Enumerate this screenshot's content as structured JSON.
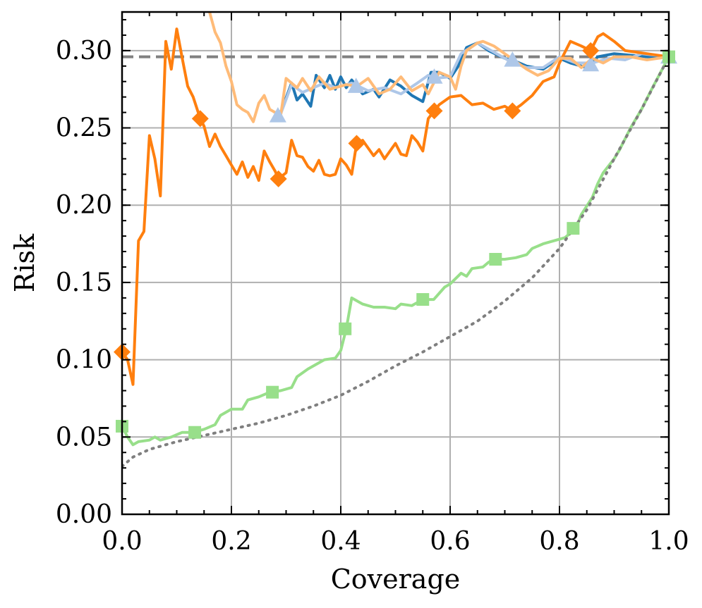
{
  "chart_data": {
    "type": "line",
    "xlabel": "Coverage",
    "ylabel": "Risk",
    "xlim": [
      0.0,
      1.0
    ],
    "ylim": [
      0.0,
      0.325
    ],
    "xticks": [
      "0.0",
      "0.2",
      "0.4",
      "0.6",
      "0.8",
      "1.0"
    ],
    "yticks": [
      "0.00",
      "0.05",
      "0.10",
      "0.15",
      "0.20",
      "0.25",
      "0.30"
    ],
    "grid": true,
    "reference_lines": [
      {
        "orientation": "horizontal",
        "y": 0.296,
        "style": "dashed",
        "color": "#808080"
      }
    ],
    "series": [
      {
        "color": "#1f77b4",
        "style": "solid",
        "marker": "none",
        "points": [
          [
            0.28,
            0.258
          ],
          [
            0.29,
            0.26
          ],
          [
            0.31,
            0.279
          ],
          [
            0.32,
            0.268
          ],
          [
            0.33,
            0.272
          ],
          [
            0.345,
            0.264
          ],
          [
            0.355,
            0.284
          ],
          [
            0.37,
            0.276
          ],
          [
            0.38,
            0.284
          ],
          [
            0.39,
            0.275
          ],
          [
            0.4,
            0.283
          ],
          [
            0.41,
            0.276
          ],
          [
            0.42,
            0.281
          ],
          [
            0.44,
            0.272
          ],
          [
            0.46,
            0.275
          ],
          [
            0.47,
            0.27
          ],
          [
            0.49,
            0.281
          ],
          [
            0.51,
            0.277
          ],
          [
            0.53,
            0.271
          ],
          [
            0.55,
            0.267
          ],
          [
            0.565,
            0.286
          ],
          [
            0.58,
            0.286
          ],
          [
            0.6,
            0.282
          ],
          [
            0.615,
            0.29
          ],
          [
            0.63,
            0.302
          ],
          [
            0.65,
            0.305
          ],
          [
            0.67,
            0.3
          ],
          [
            0.7,
            0.295
          ],
          [
            0.72,
            0.293
          ],
          [
            0.74,
            0.29
          ],
          [
            0.77,
            0.288
          ],
          [
            0.8,
            0.295
          ],
          [
            0.82,
            0.292
          ],
          [
            0.85,
            0.289
          ],
          [
            0.87,
            0.296
          ],
          [
            0.9,
            0.298
          ],
          [
            0.93,
            0.297
          ],
          [
            0.96,
            0.296
          ],
          [
            1.0,
            0.296
          ]
        ]
      },
      {
        "color": "#aec7e8",
        "style": "solid",
        "marker": "^",
        "points": [
          [
            0.28,
            0.257
          ],
          [
            0.29,
            0.259
          ],
          [
            0.31,
            0.278
          ],
          [
            0.33,
            0.273
          ],
          [
            0.35,
            0.276
          ],
          [
            0.37,
            0.279
          ],
          [
            0.39,
            0.276
          ],
          [
            0.42,
            0.279
          ],
          [
            0.45,
            0.274
          ],
          [
            0.48,
            0.276
          ],
          [
            0.51,
            0.272
          ],
          [
            0.54,
            0.279
          ],
          [
            0.56,
            0.284
          ],
          [
            0.57,
            0.282
          ],
          [
            0.6,
            0.283
          ],
          [
            0.62,
            0.298
          ],
          [
            0.65,
            0.305
          ],
          [
            0.68,
            0.299
          ],
          [
            0.71,
            0.293
          ],
          [
            0.74,
            0.289
          ],
          [
            0.77,
            0.289
          ],
          [
            0.8,
            0.296
          ],
          [
            0.83,
            0.292
          ],
          [
            0.86,
            0.292
          ],
          [
            0.89,
            0.295
          ],
          [
            0.92,
            0.294
          ],
          [
            0.95,
            0.298
          ],
          [
            1.0,
            0.296
          ]
        ],
        "markers": [
          [
            0.285,
            0.258
          ],
          [
            0.428,
            0.277
          ],
          [
            0.571,
            0.283
          ],
          [
            0.714,
            0.294
          ],
          [
            0.857,
            0.291
          ],
          [
            1.0,
            0.296
          ]
        ]
      },
      {
        "color": "#ff7f0e",
        "style": "solid",
        "marker": "D",
        "points": [
          [
            0.0,
            0.105
          ],
          [
            0.01,
            0.1
          ],
          [
            0.02,
            0.084
          ],
          [
            0.03,
            0.177
          ],
          [
            0.04,
            0.183
          ],
          [
            0.05,
            0.245
          ],
          [
            0.06,
            0.23
          ],
          [
            0.07,
            0.206
          ],
          [
            0.08,
            0.306
          ],
          [
            0.09,
            0.288
          ],
          [
            0.1,
            0.314
          ],
          [
            0.11,
            0.295
          ],
          [
            0.12,
            0.277
          ],
          [
            0.13,
            0.27
          ],
          [
            0.143,
            0.256
          ],
          [
            0.15,
            0.251
          ],
          [
            0.16,
            0.238
          ],
          [
            0.17,
            0.246
          ],
          [
            0.18,
            0.238
          ],
          [
            0.19,
            0.232
          ],
          [
            0.2,
            0.226
          ],
          [
            0.21,
            0.22
          ],
          [
            0.22,
            0.228
          ],
          [
            0.23,
            0.218
          ],
          [
            0.24,
            0.225
          ],
          [
            0.25,
            0.216
          ],
          [
            0.26,
            0.235
          ],
          [
            0.27,
            0.228
          ],
          [
            0.28,
            0.222
          ],
          [
            0.286,
            0.217
          ],
          [
            0.3,
            0.221
          ],
          [
            0.31,
            0.242
          ],
          [
            0.32,
            0.232
          ],
          [
            0.33,
            0.231
          ],
          [
            0.34,
            0.225
          ],
          [
            0.35,
            0.222
          ],
          [
            0.36,
            0.229
          ],
          [
            0.37,
            0.22
          ],
          [
            0.38,
            0.219
          ],
          [
            0.39,
            0.22
          ],
          [
            0.4,
            0.23
          ],
          [
            0.41,
            0.226
          ],
          [
            0.42,
            0.22
          ],
          [
            0.429,
            0.24
          ],
          [
            0.44,
            0.242
          ],
          [
            0.46,
            0.232
          ],
          [
            0.47,
            0.236
          ],
          [
            0.48,
            0.23
          ],
          [
            0.5,
            0.24
          ],
          [
            0.51,
            0.233
          ],
          [
            0.52,
            0.232
          ],
          [
            0.53,
            0.245
          ],
          [
            0.54,
            0.241
          ],
          [
            0.55,
            0.235
          ],
          [
            0.56,
            0.256
          ],
          [
            0.571,
            0.261
          ],
          [
            0.58,
            0.265
          ],
          [
            0.6,
            0.27
          ],
          [
            0.62,
            0.271
          ],
          [
            0.64,
            0.265
          ],
          [
            0.66,
            0.266
          ],
          [
            0.68,
            0.262
          ],
          [
            0.7,
            0.264
          ],
          [
            0.714,
            0.261
          ],
          [
            0.73,
            0.265
          ],
          [
            0.75,
            0.271
          ],
          [
            0.77,
            0.28
          ],
          [
            0.79,
            0.283
          ],
          [
            0.8,
            0.292
          ],
          [
            0.82,
            0.306
          ],
          [
            0.84,
            0.303
          ],
          [
            0.857,
            0.3
          ],
          [
            0.87,
            0.309
          ],
          [
            0.88,
            0.311
          ],
          [
            0.9,
            0.306
          ],
          [
            0.92,
            0.3
          ],
          [
            0.94,
            0.299
          ],
          [
            0.96,
            0.298
          ],
          [
            1.0,
            0.296
          ]
        ],
        "markers": [
          [
            0.0,
            0.105
          ],
          [
            0.143,
            0.256
          ],
          [
            0.286,
            0.217
          ],
          [
            0.429,
            0.24
          ],
          [
            0.571,
            0.261
          ],
          [
            0.714,
            0.261
          ],
          [
            0.857,
            0.3
          ]
        ]
      },
      {
        "color": "#ffbb78",
        "style": "solid",
        "marker": "none",
        "points": [
          [
            0.16,
            0.325
          ],
          [
            0.17,
            0.312
          ],
          [
            0.18,
            0.305
          ],
          [
            0.19,
            0.29
          ],
          [
            0.2,
            0.28
          ],
          [
            0.21,
            0.265
          ],
          [
            0.22,
            0.262
          ],
          [
            0.23,
            0.26
          ],
          [
            0.24,
            0.254
          ],
          [
            0.25,
            0.266
          ],
          [
            0.26,
            0.271
          ],
          [
            0.27,
            0.262
          ],
          [
            0.28,
            0.26
          ],
          [
            0.29,
            0.258
          ],
          [
            0.3,
            0.282
          ],
          [
            0.32,
            0.276
          ],
          [
            0.33,
            0.282
          ],
          [
            0.345,
            0.274
          ],
          [
            0.36,
            0.283
          ],
          [
            0.38,
            0.275
          ],
          [
            0.4,
            0.277
          ],
          [
            0.41,
            0.278
          ],
          [
            0.43,
            0.277
          ],
          [
            0.45,
            0.282
          ],
          [
            0.47,
            0.272
          ],
          [
            0.49,
            0.275
          ],
          [
            0.51,
            0.283
          ],
          [
            0.53,
            0.274
          ],
          [
            0.55,
            0.278
          ],
          [
            0.56,
            0.272
          ],
          [
            0.58,
            0.286
          ],
          [
            0.6,
            0.283
          ],
          [
            0.61,
            0.275
          ],
          [
            0.62,
            0.29
          ],
          [
            0.63,
            0.3
          ],
          [
            0.65,
            0.305
          ],
          [
            0.66,
            0.306
          ],
          [
            0.68,
            0.303
          ],
          [
            0.7,
            0.298
          ],
          [
            0.72,
            0.293
          ],
          [
            0.74,
            0.288
          ],
          [
            0.76,
            0.284
          ],
          [
            0.78,
            0.287
          ],
          [
            0.8,
            0.295
          ],
          [
            0.82,
            0.295
          ],
          [
            0.84,
            0.289
          ],
          [
            0.86,
            0.295
          ],
          [
            0.88,
            0.292
          ],
          [
            0.9,
            0.296
          ],
          [
            0.93,
            0.296
          ],
          [
            0.96,
            0.294
          ],
          [
            1.0,
            0.296
          ]
        ]
      },
      {
        "color": "#98df8a",
        "style": "solid",
        "marker": "s",
        "points": [
          [
            0.0,
            0.057
          ],
          [
            0.01,
            0.05
          ],
          [
            0.02,
            0.045
          ],
          [
            0.03,
            0.047
          ],
          [
            0.05,
            0.048
          ],
          [
            0.06,
            0.05
          ],
          [
            0.07,
            0.048
          ],
          [
            0.09,
            0.05
          ],
          [
            0.11,
            0.053
          ],
          [
            0.13,
            0.053
          ],
          [
            0.15,
            0.055
          ],
          [
            0.17,
            0.058
          ],
          [
            0.18,
            0.064
          ],
          [
            0.2,
            0.068
          ],
          [
            0.22,
            0.068
          ],
          [
            0.23,
            0.074
          ],
          [
            0.25,
            0.076
          ],
          [
            0.27,
            0.079
          ],
          [
            0.29,
            0.08
          ],
          [
            0.31,
            0.082
          ],
          [
            0.32,
            0.089
          ],
          [
            0.34,
            0.094
          ],
          [
            0.36,
            0.098
          ],
          [
            0.37,
            0.1
          ],
          [
            0.39,
            0.101
          ],
          [
            0.4,
            0.106
          ],
          [
            0.41,
            0.12
          ],
          [
            0.42,
            0.14
          ],
          [
            0.44,
            0.136
          ],
          [
            0.46,
            0.134
          ],
          [
            0.48,
            0.134
          ],
          [
            0.5,
            0.133
          ],
          [
            0.51,
            0.136
          ],
          [
            0.53,
            0.135
          ],
          [
            0.55,
            0.139
          ],
          [
            0.57,
            0.139
          ],
          [
            0.59,
            0.147
          ],
          [
            0.6,
            0.149
          ],
          [
            0.62,
            0.156
          ],
          [
            0.63,
            0.154
          ],
          [
            0.64,
            0.159
          ],
          [
            0.66,
            0.16
          ],
          [
            0.67,
            0.163
          ],
          [
            0.68,
            0.165
          ],
          [
            0.7,
            0.165
          ],
          [
            0.72,
            0.166
          ],
          [
            0.74,
            0.168
          ],
          [
            0.75,
            0.172
          ],
          [
            0.77,
            0.175
          ],
          [
            0.79,
            0.177
          ],
          [
            0.81,
            0.179
          ],
          [
            0.83,
            0.185
          ],
          [
            0.84,
            0.194
          ],
          [
            0.86,
            0.205
          ],
          [
            0.87,
            0.214
          ],
          [
            0.88,
            0.221
          ],
          [
            0.9,
            0.23
          ],
          [
            0.91,
            0.236
          ],
          [
            0.93,
            0.25
          ],
          [
            0.95,
            0.262
          ],
          [
            0.97,
            0.276
          ],
          [
            1.0,
            0.296
          ]
        ],
        "markers": [
          [
            0.0,
            0.057
          ],
          [
            0.133,
            0.053
          ],
          [
            0.275,
            0.079
          ],
          [
            0.408,
            0.12
          ],
          [
            0.55,
            0.139
          ],
          [
            0.683,
            0.165
          ],
          [
            0.825,
            0.185
          ],
          [
            1.0,
            0.296
          ]
        ]
      },
      {
        "color": "#7f7f7f",
        "style": "dotted",
        "marker": "none",
        "points": [
          [
            0.0,
            0.031
          ],
          [
            0.02,
            0.037
          ],
          [
            0.05,
            0.042
          ],
          [
            0.08,
            0.045
          ],
          [
            0.1,
            0.047
          ],
          [
            0.15,
            0.051
          ],
          [
            0.2,
            0.055
          ],
          [
            0.25,
            0.059
          ],
          [
            0.3,
            0.064
          ],
          [
            0.35,
            0.07
          ],
          [
            0.4,
            0.077
          ],
          [
            0.45,
            0.086
          ],
          [
            0.5,
            0.096
          ],
          [
            0.55,
            0.105
          ],
          [
            0.6,
            0.115
          ],
          [
            0.65,
            0.125
          ],
          [
            0.7,
            0.138
          ],
          [
            0.75,
            0.153
          ],
          [
            0.8,
            0.172
          ],
          [
            0.85,
            0.197
          ],
          [
            0.9,
            0.23
          ],
          [
            0.95,
            0.262
          ],
          [
            1.0,
            0.296
          ]
        ]
      }
    ]
  }
}
